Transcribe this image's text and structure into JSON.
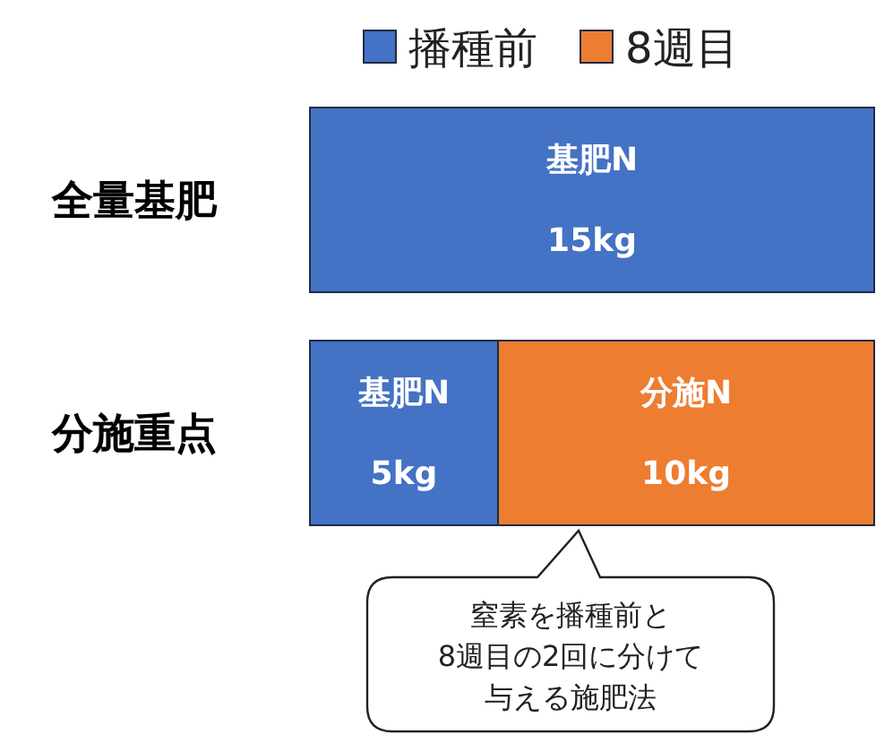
{
  "chart_data": {
    "type": "bar",
    "orientation": "horizontal",
    "stacked": true,
    "legend": "top",
    "categories": [
      "全量基肥",
      "分施重点"
    ],
    "series": [
      {
        "name": "播種前",
        "color": "#4472c4",
        "values": [
          15,
          5
        ],
        "value_labels": [
          "15kg",
          "5kg"
        ]
      },
      {
        "name": "8週目",
        "color": "#ed7d31",
        "values": [
          null,
          10
        ],
        "value_labels": [
          null,
          "10kg"
        ]
      }
    ],
    "annotations": [
      "基肥N",
      "基肥N",
      "分施N",
      {
        "text": "窒素を播種前と8週目の2回に分けて与える施肥法",
        "x": 5,
        "y": "分施重点"
      }
    ]
  }
}
